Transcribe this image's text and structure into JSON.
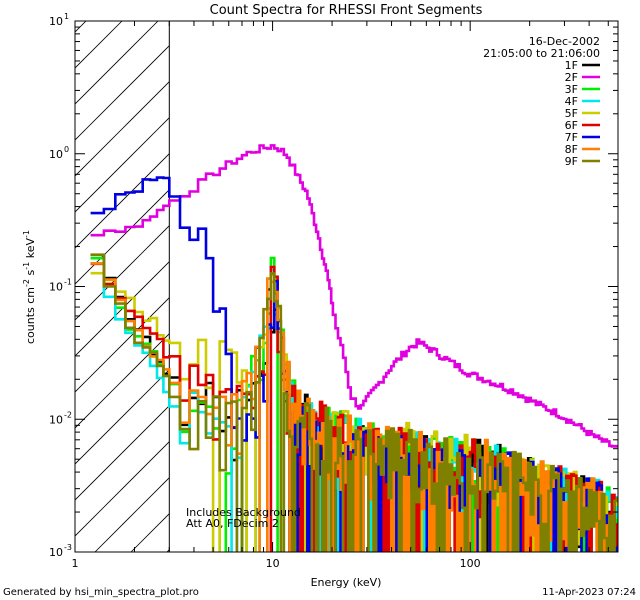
{
  "chart_data": {
    "type": "line",
    "title": "Count Spectra for RHESSI Front Segments",
    "xlabel": "Energy (keV)",
    "ylabel": "counts cm",
    "ylabel_sup1": "-2",
    "ylabel_mid": " s",
    "ylabel_sup2": "-1",
    "ylabel_end": " keV",
    "ylabel_sup3": "-1",
    "xscale": "log",
    "yscale": "log",
    "xlim": [
      1,
      560
    ],
    "ylim": [
      0.001,
      10
    ],
    "x_ticks": [
      {
        "value": 1,
        "label": "1"
      },
      {
        "value": 10,
        "label": "10"
      },
      {
        "value": 100,
        "label": "100"
      }
    ],
    "y_ticks": [
      {
        "value": 0.001,
        "base": "10",
        "exp": "-3"
      },
      {
        "value": 0.01,
        "base": "10",
        "exp": "-2"
      },
      {
        "value": 0.1,
        "base": "10",
        "exp": "-1"
      },
      {
        "value": 1,
        "base": "10",
        "exp": "0"
      },
      {
        "value": 10,
        "base": "10",
        "exp": "1"
      }
    ],
    "date": "16-Dec-2002",
    "time_range": "21:05:00 to 21:06:00",
    "attenuator_note_1": "Includes Background",
    "attenuator_note_2": "Att A0, FDecim 2",
    "hatched_region_max_energy": 3,
    "footer_left": "Generated by hsi_min_spectra_plot.pro",
    "footer_right": "11-Apr-2023 07:24",
    "series": [
      {
        "name": "1F",
        "color": "#000000",
        "seed": 11,
        "points": [
          [
            1.2,
            0.2
          ],
          [
            1.6,
            0.09
          ],
          [
            2.0,
            0.05
          ],
          [
            2.6,
            0.03
          ],
          [
            3.0,
            0.02
          ],
          [
            3.5,
            0.018
          ],
          [
            4.5,
            0.012
          ],
          [
            6,
            0.008
          ],
          [
            7.5,
            0.012
          ],
          [
            9,
            0.03
          ],
          [
            10.2,
            0.1
          ],
          [
            11.5,
            0.02
          ],
          [
            13,
            0.01
          ],
          [
            17,
            0.008
          ],
          [
            25,
            0.006
          ],
          [
            40,
            0.005
          ],
          [
            70,
            0.0045
          ],
          [
            120,
            0.004
          ],
          [
            200,
            0.003
          ],
          [
            300,
            0.0025
          ],
          [
            450,
            0.002
          ],
          [
            560,
            0.0015
          ]
        ]
      },
      {
        "name": "2F",
        "color": "#e000e0",
        "seed": 0,
        "points": [
          [
            1.2,
            0.25
          ],
          [
            1.6,
            0.27
          ],
          [
            2.0,
            0.28
          ],
          [
            2.4,
            0.32
          ],
          [
            3.0,
            0.42
          ],
          [
            4.0,
            0.55
          ],
          [
            5.0,
            0.7
          ],
          [
            6.0,
            0.83
          ],
          [
            7.0,
            0.95
          ],
          [
            8.0,
            1.05
          ],
          [
            9.0,
            1.1
          ],
          [
            10.0,
            1.15
          ],
          [
            11.0,
            1.08
          ],
          [
            12.0,
            0.95
          ],
          [
            13.0,
            0.75
          ],
          [
            15.0,
            0.5
          ],
          [
            17.0,
            0.25
          ],
          [
            19.0,
            0.12
          ],
          [
            21.0,
            0.05
          ],
          [
            23.0,
            0.03
          ],
          [
            25.0,
            0.015
          ],
          [
            28.0,
            0.012
          ],
          [
            31.0,
            0.015
          ],
          [
            35.0,
            0.019
          ],
          [
            40.0,
            0.025
          ],
          [
            50.0,
            0.035
          ],
          [
            55.0,
            0.038
          ],
          [
            65.0,
            0.033
          ],
          [
            80.0,
            0.027
          ],
          [
            100.0,
            0.022
          ],
          [
            130.0,
            0.019
          ],
          [
            170.0,
            0.016
          ],
          [
            220.0,
            0.013
          ],
          [
            280.0,
            0.011
          ],
          [
            350.0,
            0.009
          ],
          [
            420.0,
            0.0075
          ],
          [
            500.0,
            0.0065
          ],
          [
            560.0,
            0.006
          ]
        ]
      },
      {
        "name": "3F",
        "color": "#00ee00",
        "seed": 33,
        "points": [
          [
            1.2,
            0.22
          ],
          [
            1.6,
            0.08
          ],
          [
            2.0,
            0.045
          ],
          [
            2.6,
            0.03
          ],
          [
            3.0,
            0.02
          ],
          [
            3.5,
            0.015
          ],
          [
            4.5,
            0.012
          ],
          [
            6,
            0.008
          ],
          [
            7.5,
            0.012
          ],
          [
            9,
            0.035
          ],
          [
            10.2,
            0.18
          ],
          [
            11.5,
            0.025
          ],
          [
            13,
            0.01
          ],
          [
            17,
            0.008
          ],
          [
            25,
            0.006
          ],
          [
            40,
            0.005
          ],
          [
            70,
            0.0045
          ],
          [
            120,
            0.004
          ],
          [
            200,
            0.003
          ],
          [
            300,
            0.0025
          ],
          [
            450,
            0.002
          ],
          [
            560,
            0.0015
          ]
        ]
      },
      {
        "name": "4F",
        "color": "#00e8e8",
        "seed": 44,
        "points": [
          [
            1.2,
            0.22
          ],
          [
            1.6,
            0.07
          ],
          [
            2.0,
            0.035
          ],
          [
            2.6,
            0.025
          ],
          [
            3.0,
            0.015
          ],
          [
            3.5,
            0.012
          ],
          [
            4.5,
            0.01
          ],
          [
            6,
            0.007
          ],
          [
            7.5,
            0.01
          ],
          [
            9,
            0.03
          ],
          [
            10.2,
            0.15
          ],
          [
            11.5,
            0.02
          ],
          [
            13,
            0.009
          ],
          [
            17,
            0.007
          ],
          [
            25,
            0.006
          ],
          [
            40,
            0.005
          ],
          [
            70,
            0.0045
          ],
          [
            120,
            0.004
          ],
          [
            200,
            0.003
          ],
          [
            300,
            0.0025
          ],
          [
            450,
            0.002
          ],
          [
            560,
            0.0015
          ]
        ]
      },
      {
        "name": "5F",
        "color": "#cccc00",
        "seed": 55,
        "points": [
          [
            1.2,
            0.12
          ],
          [
            1.6,
            0.11
          ],
          [
            2.0,
            0.07
          ],
          [
            2.6,
            0.05
          ],
          [
            3.0,
            0.04
          ],
          [
            3.5,
            0.035
          ],
          [
            4.5,
            0.035
          ],
          [
            6,
            0.02
          ],
          [
            7.5,
            0.015
          ],
          [
            9,
            0.03
          ],
          [
            10.2,
            0.1
          ],
          [
            11.5,
            0.02
          ],
          [
            13,
            0.01
          ],
          [
            17,
            0.008
          ],
          [
            25,
            0.007
          ],
          [
            40,
            0.006
          ],
          [
            70,
            0.005
          ],
          [
            120,
            0.004
          ],
          [
            200,
            0.003
          ],
          [
            300,
            0.0025
          ],
          [
            450,
            0.002
          ],
          [
            560,
            0.0015
          ]
        ]
      },
      {
        "name": "6F",
        "color": "#e00000",
        "seed": 66,
        "points": [
          [
            1.2,
            0.18
          ],
          [
            1.6,
            0.08
          ],
          [
            2.0,
            0.06
          ],
          [
            2.6,
            0.04
          ],
          [
            3.0,
            0.03
          ],
          [
            3.5,
            0.025
          ],
          [
            4.5,
            0.015
          ],
          [
            6,
            0.01
          ],
          [
            7.5,
            0.012
          ],
          [
            9,
            0.03
          ],
          [
            10.2,
            0.12
          ],
          [
            11.5,
            0.02
          ],
          [
            13,
            0.01
          ],
          [
            17,
            0.008
          ],
          [
            25,
            0.006
          ],
          [
            40,
            0.005
          ],
          [
            70,
            0.0045
          ],
          [
            120,
            0.004
          ],
          [
            200,
            0.003
          ],
          [
            300,
            0.0025
          ],
          [
            450,
            0.002
          ],
          [
            560,
            0.0015
          ]
        ]
      },
      {
        "name": "7F",
        "color": "#0000e0",
        "seed": 77,
        "points": [
          [
            1.2,
            0.35
          ],
          [
            1.5,
            0.4
          ],
          [
            1.8,
            0.5
          ],
          [
            2.1,
            0.55
          ],
          [
            2.5,
            0.65
          ],
          [
            2.9,
            0.6
          ],
          [
            3.2,
            0.5
          ],
          [
            3.8,
            0.45
          ],
          [
            4.2,
            0.3
          ],
          [
            4.6,
            0.18
          ],
          [
            5.0,
            0.09
          ],
          [
            5.5,
            0.05
          ],
          [
            6.0,
            0.025
          ],
          [
            6.5,
            0.012
          ],
          [
            7.0,
            0.008
          ],
          [
            8.0,
            0.007
          ],
          [
            9,
            0.02
          ],
          [
            10.2,
            0.12
          ],
          [
            11.5,
            0.015
          ],
          [
            13,
            0.008
          ],
          [
            17,
            0.006
          ],
          [
            25,
            0.005
          ],
          [
            40,
            0.0045
          ],
          [
            70,
            0.004
          ],
          [
            120,
            0.0035
          ],
          [
            200,
            0.003
          ],
          [
            300,
            0.0025
          ],
          [
            450,
            0.002
          ],
          [
            560,
            0.0015
          ]
        ]
      },
      {
        "name": "8F",
        "color": "#ff8000",
        "seed": 88,
        "points": [
          [
            1.2,
            0.2
          ],
          [
            1.6,
            0.09
          ],
          [
            2.0,
            0.05
          ],
          [
            2.6,
            0.03
          ],
          [
            3.0,
            0.02
          ],
          [
            3.5,
            0.016
          ],
          [
            4.5,
            0.012
          ],
          [
            6,
            0.008
          ],
          [
            7.5,
            0.012
          ],
          [
            9,
            0.03
          ],
          [
            10.2,
            0.14
          ],
          [
            11.5,
            0.02
          ],
          [
            13,
            0.01
          ],
          [
            17,
            0.008
          ],
          [
            25,
            0.006
          ],
          [
            40,
            0.005
          ],
          [
            70,
            0.0045
          ],
          [
            120,
            0.004
          ],
          [
            200,
            0.003
          ],
          [
            300,
            0.0025
          ],
          [
            450,
            0.002
          ],
          [
            560,
            0.0015
          ]
        ]
      },
      {
        "name": "9F",
        "color": "#808000",
        "seed": 99,
        "points": [
          [
            1.2,
            0.2
          ],
          [
            1.6,
            0.09
          ],
          [
            2.0,
            0.045
          ],
          [
            2.6,
            0.028
          ],
          [
            3.0,
            0.018
          ],
          [
            3.5,
            0.014
          ],
          [
            4.5,
            0.011
          ],
          [
            6,
            0.008
          ],
          [
            7.5,
            0.012
          ],
          [
            9,
            0.03
          ],
          [
            10.2,
            0.13
          ],
          [
            11.5,
            0.02
          ],
          [
            13,
            0.01
          ],
          [
            17,
            0.008
          ],
          [
            25,
            0.006
          ],
          [
            40,
            0.005
          ],
          [
            70,
            0.0045
          ],
          [
            120,
            0.004
          ],
          [
            200,
            0.003
          ],
          [
            300,
            0.0025
          ],
          [
            450,
            0.002
          ],
          [
            560,
            0.0015
          ]
        ]
      }
    ]
  }
}
